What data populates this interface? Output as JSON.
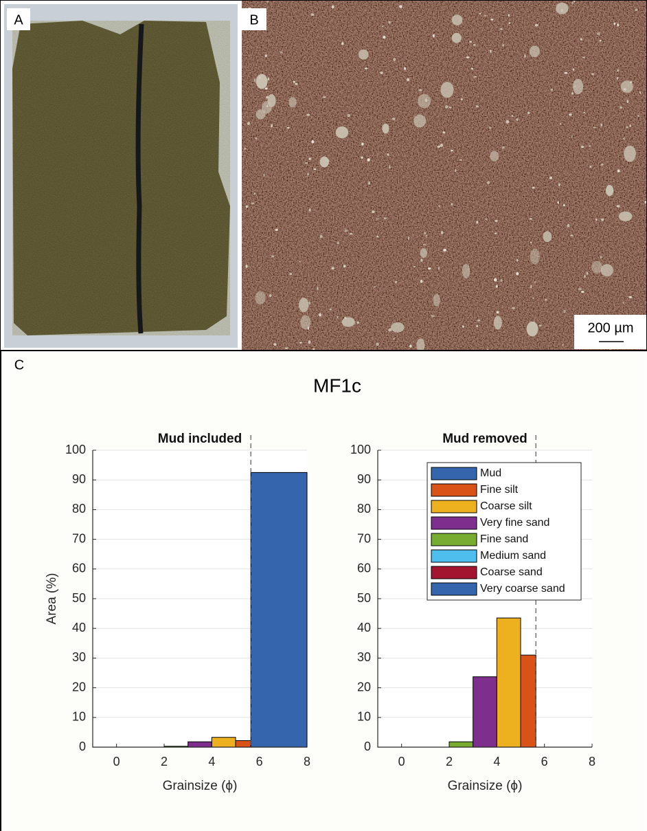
{
  "panels": {
    "a": "A",
    "b": "B",
    "c": "C"
  },
  "scale_bar": "200 µm",
  "title": "MF1c",
  "chart_data": [
    {
      "type": "histogram",
      "title": "Mud included",
      "xlabel": "Grainsize (ϕ)",
      "ylabel": "Area (%)",
      "bins": [
        2,
        3,
        4,
        5,
        5.64,
        8
      ],
      "values": [
        0.3,
        1.8,
        3.3,
        2.2,
        92.5
      ],
      "colors": [
        "#77ac30",
        "#7e2f8e",
        "#edb120",
        "#d95319",
        "#3566ad"
      ],
      "dashed_line_x": 5.64,
      "xlim": [
        -1,
        8
      ],
      "xticks": [
        0,
        2,
        4,
        6,
        8
      ],
      "ylim": [
        0,
        100
      ],
      "yticks": [
        0,
        10,
        20,
        30,
        40,
        50,
        60,
        70,
        80,
        90,
        100
      ],
      "grid": true
    },
    {
      "type": "histogram",
      "title": "Mud removed",
      "xlabel": "Grainsize (ϕ)",
      "bins": [
        2,
        3,
        4,
        5,
        5.64,
        8
      ],
      "values": [
        1.8,
        23.7,
        43.5,
        31,
        0
      ],
      "colors": [
        "#77ac30",
        "#7e2f8e",
        "#edb120",
        "#d95319",
        "#3566ad"
      ],
      "dashed_line_x": 5.64,
      "xlim": [
        -1,
        8
      ],
      "xticks": [
        0,
        2,
        4,
        6,
        8
      ],
      "ylim": [
        0,
        100
      ],
      "yticks": [
        0,
        10,
        20,
        30,
        40,
        50,
        60,
        70,
        80,
        90,
        100
      ],
      "grid": true,
      "legend": {
        "position": "upper right",
        "entries": [
          {
            "name": "Mud",
            "color": "#3566ad"
          },
          {
            "name": "Fine silt",
            "color": "#d95319"
          },
          {
            "name": "Coarse silt",
            "color": "#edb120"
          },
          {
            "name": "Very fine sand",
            "color": "#7e2f8e"
          },
          {
            "name": "Fine sand",
            "color": "#77ac30"
          },
          {
            "name": "Medium sand",
            "color": "#4dbeee"
          },
          {
            "name": "Coarse sand",
            "color": "#a2142f"
          },
          {
            "name": "Very coarse sand",
            "color": "#3566ad"
          }
        ]
      }
    }
  ]
}
